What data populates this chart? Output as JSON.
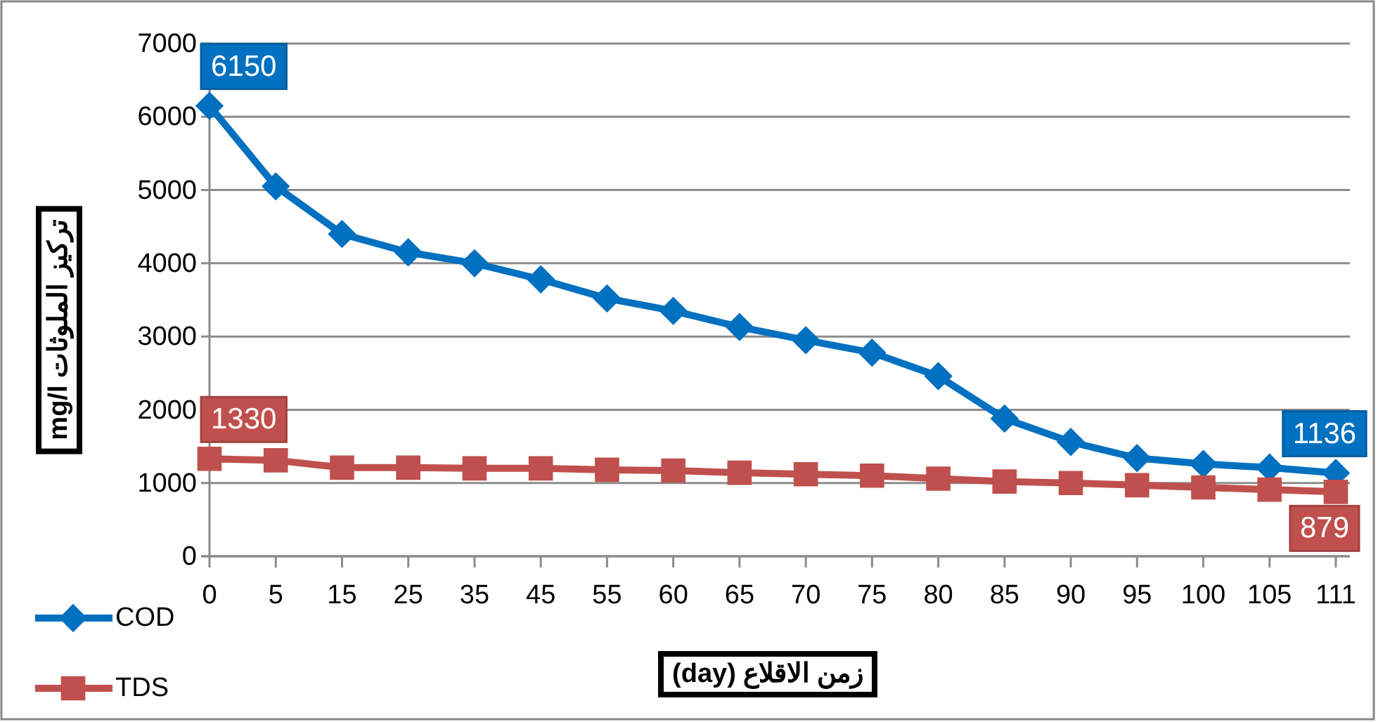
{
  "chart_data": {
    "type": "line",
    "xlabel": "زمن الاقلاع (day)",
    "ylabel": "تركيز الملوثات mg/l",
    "categories": [
      "0",
      "5",
      "15",
      "25",
      "35",
      "45",
      "55",
      "60",
      "65",
      "70",
      "75",
      "80",
      "85",
      "90",
      "95",
      "100",
      "105",
      "111"
    ],
    "series": [
      {
        "name": "COD",
        "color": "#0070c0",
        "marker": "diamond",
        "values": [
          6150,
          5050,
          4400,
          4150,
          4000,
          3780,
          3520,
          3350,
          3130,
          2950,
          2780,
          2460,
          1880,
          1560,
          1340,
          1260,
          1210,
          1136
        ],
        "value_labels": [
          "6150",
          null,
          null,
          null,
          null,
          null,
          null,
          null,
          null,
          null,
          null,
          null,
          null,
          null,
          null,
          null,
          null,
          "1136"
        ]
      },
      {
        "name": "TDS",
        "color": "#c0504d",
        "marker": "square",
        "values": [
          1330,
          1310,
          1210,
          1210,
          1200,
          1200,
          1180,
          1170,
          1140,
          1120,
          1100,
          1060,
          1020,
          1000,
          970,
          940,
          910,
          879
        ],
        "value_labels": [
          "1330",
          null,
          null,
          null,
          null,
          null,
          null,
          null,
          null,
          null,
          null,
          null,
          null,
          null,
          null,
          null,
          null,
          "879"
        ]
      }
    ],
    "ylim": [
      0,
      7000
    ],
    "yticks": [
      0,
      1000,
      2000,
      3000,
      4000,
      5000,
      6000,
      7000
    ],
    "grid": "y",
    "legend": "bottom left",
    "line_style": "solid"
  }
}
